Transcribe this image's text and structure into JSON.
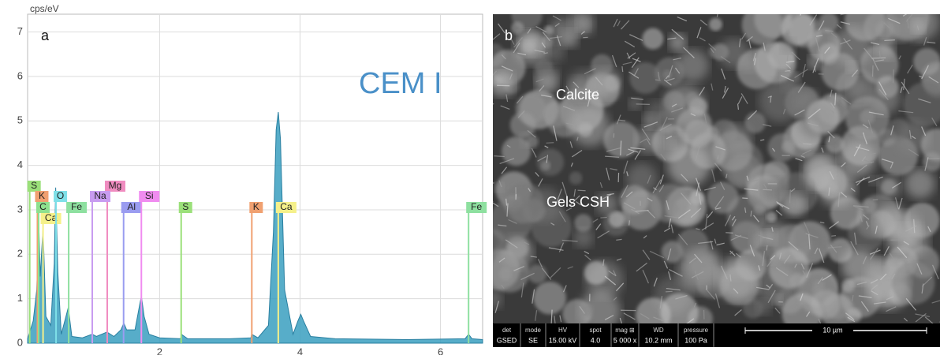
{
  "chart_data": {
    "type": "area",
    "panel_label": "a",
    "annotation": "CEM I",
    "y_label": "cps/eV",
    "color": "#3a9fc0",
    "x": [
      0.12,
      0.2,
      0.25,
      0.28,
      0.3,
      0.34,
      0.38,
      0.45,
      0.5,
      0.52,
      0.55,
      0.6,
      0.7,
      0.75,
      0.9,
      1.04,
      1.1,
      1.25,
      1.35,
      1.45,
      1.49,
      1.53,
      1.65,
      1.72,
      1.74,
      1.78,
      1.85,
      2.0,
      2.3,
      2.31,
      2.4,
      3.0,
      3.3,
      3.31,
      3.4,
      3.55,
      3.62,
      3.66,
      3.69,
      3.72,
      3.78,
      3.9,
      3.97,
      4.01,
      4.05,
      4.15,
      4.5,
      5.5,
      6.35,
      6.4,
      6.45,
      6.6
    ],
    "values": [
      0.1,
      0.5,
      1.2,
      2.7,
      1.5,
      2.6,
      0.6,
      0.4,
      1.8,
      3.5,
      1.6,
      0.2,
      0.8,
      0.15,
      0.12,
      0.2,
      0.15,
      0.25,
      0.15,
      0.3,
      0.45,
      0.3,
      0.3,
      0.9,
      1.05,
      0.6,
      0.2,
      0.12,
      0.1,
      0.2,
      0.1,
      0.1,
      0.12,
      0.2,
      0.12,
      0.4,
      2.5,
      4.8,
      5.2,
      4.6,
      1.2,
      0.2,
      0.5,
      0.65,
      0.5,
      0.15,
      0.1,
      0.08,
      0.1,
      0.2,
      0.1,
      0.08
    ],
    "elements": [
      {
        "label": "S",
        "x": 0.15,
        "color": "#9be07a"
      },
      {
        "label": "K",
        "x": 0.26,
        "color": "#f0a070"
      },
      {
        "label": "C",
        "x": 0.277,
        "color": "#8ee08e"
      },
      {
        "label": "Ca",
        "x": 0.34,
        "color": "#f5f08a"
      },
      {
        "label": "O",
        "x": 0.525,
        "color": "#7fe0e8"
      },
      {
        "label": "Fe",
        "x": 0.705,
        "color": "#8ee0a0"
      },
      {
        "label": "Mg",
        "x": 1.254,
        "color": "#f08cc0"
      },
      {
        "label": "Na",
        "x": 1.041,
        "color": "#c89cf0"
      },
      {
        "label": "Al",
        "x": 1.487,
        "color": "#9a9cf0"
      },
      {
        "label": "Si",
        "x": 1.74,
        "color": "#f08cf0"
      },
      {
        "label": "S",
        "x": 2.307,
        "color": "#9be07a"
      },
      {
        "label": "K",
        "x": 3.313,
        "color": "#f0a070"
      },
      {
        "label": "Ca",
        "x": 3.69,
        "color": "#f5f08a"
      },
      {
        "label": "Fe",
        "x": 6.4,
        "color": "#8ee0a0"
      }
    ],
    "xlim": [
      0.12,
      6.6
    ],
    "ylim": [
      0,
      7.4
    ],
    "xticks": [
      2,
      4,
      6
    ],
    "yticks": [
      0,
      1,
      2,
      3,
      4,
      5,
      6,
      7
    ],
    "grid": true
  },
  "image": {
    "panel_label": "b",
    "labels": [
      "Calcite",
      "Gels CSH"
    ],
    "info_headers": [
      "det",
      "mode",
      "HV",
      "spot",
      "mag ⊞",
      "WD",
      "pressure"
    ],
    "info_values": [
      "GSED",
      "SE",
      "15.00 kV",
      "4.0",
      "5 000 x",
      "10.2 mm",
      "100 Pa"
    ],
    "scale_bar": "10 µm"
  }
}
